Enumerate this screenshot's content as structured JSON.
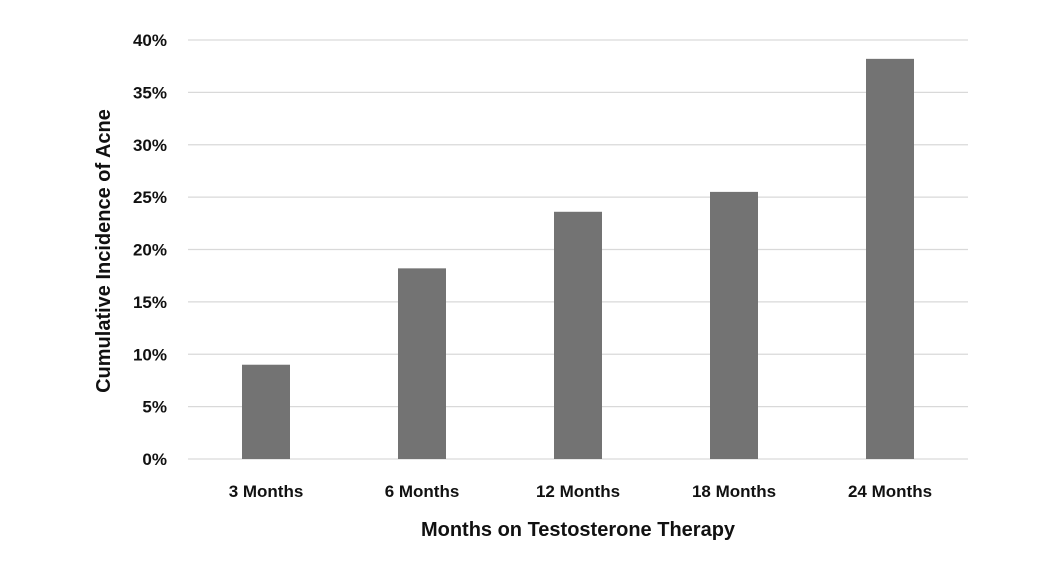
{
  "chart_data": {
    "type": "bar",
    "categories": [
      "3 Months",
      "6 Months",
      "12 Months",
      "18 Months",
      "24 Months"
    ],
    "values": [
      9.0,
      18.2,
      23.6,
      25.5,
      38.2
    ],
    "xlabel": "Months on Testosterone Therapy",
    "ylabel": "Cumulative Incidence of Acne",
    "ylim": [
      0,
      40
    ],
    "yticks": [
      0,
      5,
      10,
      15,
      20,
      25,
      30,
      35,
      40
    ],
    "ytick_labels": [
      "0%",
      "5%",
      "10%",
      "15%",
      "20%",
      "25%",
      "30%",
      "35%",
      "40%"
    ],
    "grid": "horizontal",
    "legend": "none",
    "colors": {
      "bar": "#737373",
      "grid": "#d9d9d9",
      "text": "#111111"
    }
  }
}
